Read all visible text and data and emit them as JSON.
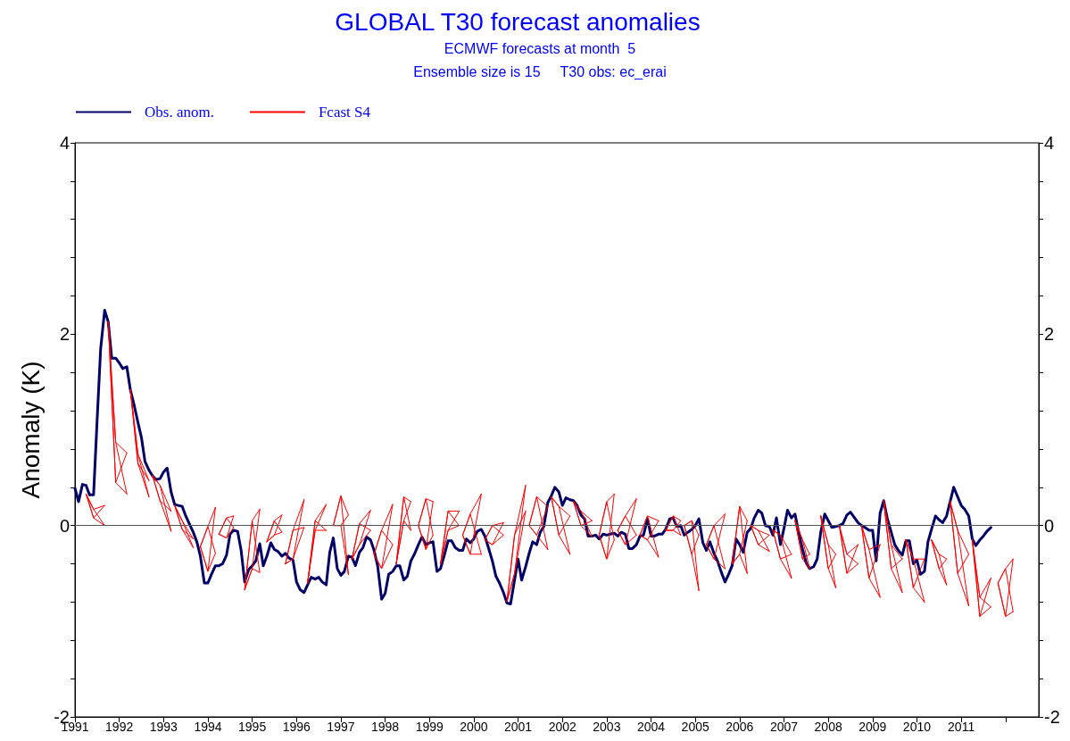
{
  "chart_data": {
    "type": "line",
    "title": "GLOBAL T30 forecast anomalies",
    "subtitle": "ECMWF forecasts at month  5\nEnsemble size is 15     T30 obs: ec_erai",
    "ylabel": "Anomaly (K)",
    "legend": "top left",
    "marker": "none",
    "xlim": [
      1991,
      2012.75
    ],
    "xticks": [
      1991,
      1992,
      1993,
      1994,
      1995,
      1996,
      1997,
      1998,
      1999,
      2000,
      2001,
      2002,
      2003,
      2004,
      2005,
      2006,
      2007,
      2008,
      2009,
      2010,
      2011,
      {
        "value": 2012,
        "label": null
      }
    ],
    "ylim": [
      -2,
      4
    ],
    "yticks": [
      -2,
      {
        "value": -1.6,
        "label": null
      },
      {
        "value": -1.2,
        "label": null
      },
      {
        "value": -0.8,
        "label": null
      },
      {
        "value": -0.4,
        "label": null
      },
      0,
      {
        "value": 0.4,
        "label": null
      },
      {
        "value": 0.8,
        "label": null
      },
      {
        "value": 1.2,
        "label": null
      },
      {
        "value": 1.6,
        "label": null
      },
      2,
      {
        "value": 2.4,
        "label": null
      },
      {
        "value": 2.8,
        "label": null
      },
      {
        "value": 3.2,
        "label": null
      },
      {
        "value": 3.6,
        "label": null
      },
      4
    ],
    "y2lim": [
      -2,
      4
    ],
    "y2ticks": [
      -2,
      {
        "value": -1.6,
        "label": null
      },
      {
        "value": -1.2,
        "label": null
      },
      {
        "value": -0.8,
        "label": null
      },
      {
        "value": -0.4,
        "label": null
      },
      0,
      {
        "value": 0.4,
        "label": null
      },
      {
        "value": 0.8,
        "label": null
      },
      {
        "value": 1.2,
        "label": null
      },
      {
        "value": 1.6,
        "label": null
      },
      2,
      {
        "value": 2.4,
        "label": null
      },
      {
        "value": 2.8,
        "label": null
      },
      {
        "value": 3.2,
        "label": null
      },
      {
        "value": 3.6,
        "label": null
      },
      4
    ],
    "ref_lines": [
      {
        "axis": "y",
        "value": 0,
        "label": null,
        "color": "#555555"
      }
    ],
    "series": [
      {
        "name": "Obs. anom.",
        "color": "#000066",
        "x": [
          1991,
          1991.08,
          1991.17,
          1991.25,
          1991.33,
          1991.42,
          1991.5,
          1991.58,
          1991.67,
          1991.75,
          1991.83,
          1991.92,
          1992,
          1992.08,
          1992.17,
          1992.25,
          1992.33,
          1992.42,
          1992.5,
          1992.58,
          1992.67,
          1992.75,
          1992.83,
          1992.92,
          1993,
          1993.08,
          1993.17,
          1993.25,
          1993.33,
          1993.42,
          1993.5,
          1993.58,
          1993.67,
          1993.75,
          1993.83,
          1993.92,
          1994,
          1994.08,
          1994.17,
          1994.25,
          1994.33,
          1994.42,
          1994.5,
          1994.58,
          1994.67,
          1994.75,
          1994.83,
          1994.92,
          1995,
          1995.08,
          1995.17,
          1995.25,
          1995.33,
          1995.42,
          1995.5,
          1995.58,
          1995.67,
          1995.75,
          1995.83,
          1995.92,
          1996,
          1996.08,
          1996.17,
          1996.25,
          1996.33,
          1996.42,
          1996.5,
          1996.58,
          1996.67,
          1996.75,
          1996.83,
          1996.92,
          1997,
          1997.08,
          1997.17,
          1997.25,
          1997.33,
          1997.42,
          1997.5,
          1997.58,
          1997.67,
          1997.75,
          1997.83,
          1997.92,
          1998,
          1998.08,
          1998.17,
          1998.25,
          1998.33,
          1998.42,
          1998.5,
          1998.58,
          1998.67,
          1998.75,
          1998.83,
          1998.92,
          1999,
          1999.08,
          1999.17,
          1999.25,
          1999.33,
          1999.42,
          1999.5,
          1999.58,
          1999.67,
          1999.75,
          1999.83,
          1999.92,
          2000,
          2000.08,
          2000.17,
          2000.25,
          2000.33,
          2000.42,
          2000.5,
          2000.58,
          2000.67,
          2000.75,
          2000.83,
          2000.92,
          2001,
          2001.08,
          2001.17,
          2001.25,
          2001.33,
          2001.42,
          2001.5,
          2001.58,
          2001.67,
          2001.75,
          2001.83,
          2001.92,
          2002,
          2002.08,
          2002.17,
          2002.25,
          2002.33,
          2002.42,
          2002.5,
          2002.58,
          2002.67,
          2002.75,
          2002.83,
          2002.92,
          2003,
          2003.08,
          2003.17,
          2003.25,
          2003.33,
          2003.42,
          2003.5,
          2003.58,
          2003.67,
          2003.75,
          2003.83,
          2003.92,
          2004,
          2004.08,
          2004.17,
          2004.25,
          2004.33,
          2004.42,
          2004.5,
          2004.58,
          2004.67,
          2004.75,
          2004.83,
          2004.92,
          2005,
          2005.08,
          2005.17,
          2005.25,
          2005.33,
          2005.42,
          2005.5,
          2005.58,
          2005.67,
          2005.75,
          2005.83,
          2005.92,
          2006,
          2006.08,
          2006.17,
          2006.25,
          2006.33,
          2006.42,
          2006.5,
          2006.58,
          2006.67,
          2006.75,
          2006.83,
          2006.92,
          2007,
          2007.08,
          2007.17,
          2007.25,
          2007.33,
          2007.42,
          2007.5,
          2007.58,
          2007.67,
          2007.75,
          2007.83,
          2007.92,
          2008,
          2008.08,
          2008.17,
          2008.25,
          2008.33,
          2008.42,
          2008.5,
          2008.58,
          2008.67,
          2008.75,
          2008.83,
          2008.92,
          2009,
          2009.08,
          2009.17,
          2009.25,
          2009.33,
          2009.42,
          2009.5,
          2009.58,
          2009.67,
          2009.75,
          2009.83,
          2009.92,
          2010,
          2010.08,
          2010.17,
          2010.25,
          2010.33,
          2010.42,
          2010.5,
          2010.58,
          2010.67,
          2010.75,
          2010.83,
          2010.92,
          2011,
          2011.08,
          2011.17,
          2011.25,
          2011.33,
          2011.42,
          2011.5,
          2011.58,
          2011.67
        ],
        "values": [
          0.39,
          0.25,
          0.43,
          0.42,
          0.32,
          0.32,
          1.1,
          1.85,
          2.25,
          2.13,
          1.75,
          1.75,
          1.7,
          1.64,
          1.66,
          1.42,
          1.27,
          1.08,
          0.92,
          0.67,
          0.58,
          0.52,
          0.48,
          0.49,
          0.56,
          0.6,
          0.35,
          0.22,
          0.21,
          0.2,
          0.1,
          0.02,
          -0.07,
          -0.17,
          -0.32,
          -0.6,
          -0.6,
          -0.51,
          -0.42,
          -0.42,
          -0.4,
          -0.31,
          -0.09,
          -0.05,
          -0.06,
          -0.26,
          -0.59,
          -0.46,
          -0.42,
          -0.37,
          -0.19,
          -0.42,
          -0.32,
          -0.18,
          -0.25,
          -0.27,
          -0.32,
          -0.29,
          -0.34,
          -0.36,
          -0.59,
          -0.67,
          -0.7,
          -0.62,
          -0.54,
          -0.56,
          -0.54,
          -0.59,
          -0.62,
          -0.28,
          -0.13,
          -0.45,
          -0.52,
          -0.48,
          -0.32,
          -0.33,
          -0.42,
          -0.28,
          -0.23,
          -0.12,
          -0.15,
          -0.26,
          -0.42,
          -0.77,
          -0.71,
          -0.51,
          -0.48,
          -0.42,
          -0.42,
          -0.57,
          -0.53,
          -0.37,
          -0.29,
          -0.2,
          -0.12,
          -0.2,
          -0.18,
          -0.17,
          -0.48,
          -0.45,
          -0.32,
          -0.16,
          -0.16,
          -0.23,
          -0.26,
          -0.26,
          -0.14,
          -0.18,
          -0.14,
          -0.06,
          -0.04,
          -0.11,
          -0.23,
          -0.37,
          -0.53,
          -0.6,
          -0.7,
          -0.81,
          -0.82,
          -0.57,
          -0.35,
          -0.57,
          -0.43,
          -0.29,
          -0.17,
          -0.2,
          -0.07,
          -0.01,
          0.24,
          0.31,
          0.4,
          0.35,
          0.21,
          0.29,
          0.27,
          0.26,
          0.21,
          0.11,
          0.07,
          -0.11,
          -0.11,
          -0.1,
          -0.14,
          -0.09,
          -0.1,
          -0.09,
          -0.08,
          -0.11,
          -0.07,
          -0.09,
          -0.24,
          -0.24,
          -0.2,
          -0.11,
          -0.1,
          0.07,
          -0.11,
          -0.11,
          -0.09,
          -0.09,
          -0.04,
          0.07,
          0.08,
          -0.01,
          0.0,
          -0.1,
          -0.07,
          -0.04,
          0.0,
          0.07,
          -0.18,
          -0.26,
          -0.17,
          -0.29,
          -0.37,
          -0.48,
          -0.59,
          -0.51,
          -0.42,
          -0.14,
          -0.2,
          -0.28,
          -0.07,
          -0.03,
          0.08,
          0.16,
          0.13,
          0.0,
          -0.01,
          -0.1,
          0.08,
          -0.2,
          -0.03,
          0.16,
          0.08,
          0.12,
          -0.07,
          -0.25,
          -0.39,
          -0.45,
          -0.43,
          -0.35,
          -0.07,
          0.12,
          0.05,
          -0.02,
          -0.01,
          0.0,
          0.02,
          0.11,
          0.14,
          0.09,
          0.03,
          0.0,
          -0.02,
          -0.05,
          -0.05,
          -0.37,
          0.13,
          0.26,
          0.08,
          -0.07,
          -0.2,
          -0.26,
          -0.31,
          -0.16,
          -0.16,
          -0.4,
          -0.36,
          -0.51,
          -0.48,
          -0.17,
          -0.04,
          0.1,
          0.06,
          0.03,
          0.1,
          0.25,
          0.4,
          0.3,
          0.21,
          0.17,
          0.1,
          -0.14,
          -0.21,
          -0.15,
          -0.11,
          -0.06,
          -0.02
        ]
      },
      {
        "name": "Fcast S4",
        "color": "#ff0000",
        "x": [
          1991.25,
          1991.42,
          1991.67,
          null,
          1991.25,
          1991.42,
          1991.67,
          null,
          1991.25,
          1991.42,
          1991.67,
          null,
          1991.25,
          1991.42,
          1991.67,
          null,
          1991.75,
          1991.92,
          1992.17,
          null,
          1991.75,
          1991.92,
          1992.17,
          null,
          1991.75,
          1991.92,
          1992.17,
          null,
          1991.75,
          1991.92,
          1992.17,
          null,
          1992.25,
          1992.42,
          1992.67,
          null,
          1992.25,
          1992.42,
          1992.67,
          null,
          1992.25,
          1992.42,
          1992.67,
          null,
          1992.25,
          1992.42,
          1992.67,
          null,
          1992.75,
          1992.92,
          1993.17,
          null,
          1992.75,
          1992.92,
          1993.17,
          null,
          1992.75,
          1992.92,
          1993.17,
          null,
          1992.75,
          1992.92,
          1993.17,
          null,
          1993.25,
          1993.42,
          1993.67,
          null,
          1993.25,
          1993.42,
          1993.67,
          null,
          1993.25,
          1993.42,
          1993.67,
          null,
          1993.25,
          1993.42,
          1993.67,
          null,
          1993.83,
          1994,
          1994.17,
          null,
          1993.83,
          1994,
          1994.17,
          null,
          1993.83,
          1994,
          1994.17,
          null,
          1993.83,
          1994,
          1994.17,
          null,
          1994.25,
          1994.42,
          1994.58,
          null,
          1994.25,
          1994.42,
          1994.58,
          null,
          1994.25,
          1994.42,
          1994.58,
          null,
          1994.25,
          1994.42,
          1994.58,
          null,
          1994.83,
          1995,
          1995.17,
          null,
          1994.83,
          1995,
          1995.17,
          null,
          1994.83,
          1995,
          1995.17,
          null,
          1994.83,
          1995,
          1995.17,
          null,
          1995.33,
          1995.5,
          1995.67,
          null,
          1995.33,
          1995.5,
          1995.67,
          null,
          1995.33,
          1995.5,
          1995.67,
          null,
          1995.33,
          1995.5,
          1995.67,
          null,
          1995.75,
          1995.92,
          1996.17,
          null,
          1995.75,
          1995.92,
          1996.17,
          null,
          1995.75,
          1995.92,
          1996.17,
          null,
          1995.75,
          1995.92,
          1996.17,
          null,
          1996.25,
          1996.42,
          1996.67,
          null,
          1996.25,
          1996.42,
          1996.67,
          null,
          1996.25,
          1996.42,
          1996.67,
          null,
          1996.25,
          1996.42,
          1996.67,
          null,
          1996.83,
          1997,
          1997.17,
          null,
          1996.83,
          1997,
          1997.17,
          null,
          1996.83,
          1997,
          1997.17,
          null,
          1996.83,
          1997,
          1997.17,
          null,
          1997.25,
          1997.42,
          1997.67,
          null,
          1997.25,
          1997.42,
          1997.67,
          null,
          1997.25,
          1997.42,
          1997.67,
          null,
          1997.25,
          1997.42,
          1997.67,
          null,
          1997.75,
          1997.92,
          1998.17,
          null,
          1997.75,
          1997.92,
          1998.17,
          null,
          1997.75,
          1997.92,
          1998.17,
          null,
          1997.75,
          1997.92,
          1998.17,
          null,
          1998.25,
          1998.42,
          1998.58,
          null,
          1998.25,
          1998.42,
          1998.58,
          null,
          1998.25,
          1998.42,
          1998.58,
          null,
          1998.25,
          1998.42,
          1998.58,
          null,
          1998.75,
          1998.92,
          1999.08,
          null,
          1998.75,
          1998.92,
          1999.08,
          null,
          1998.75,
          1998.92,
          1999.08,
          null,
          1998.75,
          1998.92,
          1999.08,
          null,
          1999.25,
          1999.42,
          1999.67,
          null,
          1999.25,
          1999.42,
          1999.67,
          null,
          1999.25,
          1999.42,
          1999.67,
          null,
          1999.25,
          1999.42,
          1999.67,
          null,
          1999.75,
          1999.92,
          2000.17,
          null,
          1999.75,
          1999.92,
          2000.17,
          null,
          1999.75,
          1999.92,
          2000.17,
          null,
          1999.75,
          1999.92,
          2000.17,
          null,
          2000.25,
          2000.42,
          2000.67,
          null,
          2000.25,
          2000.42,
          2000.67,
          null,
          2000.25,
          2000.42,
          2000.67,
          null,
          2000.25,
          2000.42,
          2000.67,
          null,
          2000.75,
          2000.92,
          2001.17,
          null,
          2000.75,
          2000.92,
          2001.17,
          null,
          2000.75,
          2000.92,
          2001.17,
          null,
          2000.75,
          2000.92,
          2001.17,
          null,
          2001.25,
          2001.42,
          2001.67,
          null,
          2001.25,
          2001.42,
          2001.67,
          null,
          2001.25,
          2001.42,
          2001.67,
          null,
          2001.25,
          2001.42,
          2001.67,
          null,
          2001.75,
          2001.92,
          2002.17,
          null,
          2001.75,
          2001.92,
          2002.17,
          null,
          2001.75,
          2001.92,
          2002.17,
          null,
          2001.75,
          2001.92,
          2002.17,
          null,
          2002.25,
          2002.42,
          2002.67,
          null,
          2002.25,
          2002.42,
          2002.67,
          null,
          2002.25,
          2002.42,
          2002.67,
          null,
          2002.25,
          2002.42,
          2002.67,
          null,
          2002.83,
          2003,
          2003.17,
          null,
          2002.83,
          2003,
          2003.17,
          null,
          2002.83,
          2003,
          2003.17,
          null,
          2002.83,
          2003,
          2003.17,
          null,
          2003.25,
          2003.42,
          2003.67,
          null,
          2003.25,
          2003.42,
          2003.67,
          null,
          2003.25,
          2003.42,
          2003.67,
          null,
          2003.25,
          2003.42,
          2003.67,
          null,
          2003.75,
          2003.92,
          2004.17,
          null,
          2003.75,
          2003.92,
          2004.17,
          null,
          2003.75,
          2003.92,
          2004.17,
          null,
          2003.75,
          2003.92,
          2004.17,
          null,
          2004.33,
          2004.5,
          2004.67,
          null,
          2004.33,
          2004.5,
          2004.67,
          null,
          2004.33,
          2004.5,
          2004.67,
          null,
          2004.33,
          2004.5,
          2004.67,
          null,
          2004.75,
          2004.92,
          2005.08,
          null,
          2004.75,
          2004.92,
          2005.08,
          null,
          2004.75,
          2004.92,
          2005.08,
          null,
          2004.75,
          2004.92,
          2005.08,
          null,
          2005.25,
          2005.42,
          2005.67,
          null,
          2005.25,
          2005.42,
          2005.67,
          null,
          2005.25,
          2005.42,
          2005.67,
          null,
          2005.25,
          2005.42,
          2005.67,
          null,
          2005.83,
          2006,
          2006.17,
          null,
          2005.83,
          2006,
          2006.17,
          null,
          2005.83,
          2006,
          2006.17,
          null,
          2005.83,
          2006,
          2006.17,
          null,
          2006.25,
          2006.42,
          2006.67,
          null,
          2006.25,
          2006.42,
          2006.67,
          null,
          2006.25,
          2006.42,
          2006.67,
          null,
          2006.25,
          2006.42,
          2006.67,
          null,
          2006.75,
          2006.92,
          2007.17,
          null,
          2006.75,
          2006.92,
          2007.17,
          null,
          2006.75,
          2006.92,
          2007.17,
          null,
          2006.75,
          2006.92,
          2007.17,
          null,
          2007.25,
          2007.42,
          2007.58,
          null,
          2007.25,
          2007.42,
          2007.58,
          null,
          2007.25,
          2007.42,
          2007.58,
          null,
          2007.25,
          2007.42,
          2007.58,
          null,
          2007.83,
          2008,
          2008.17,
          null,
          2007.83,
          2008,
          2008.17,
          null,
          2007.83,
          2008,
          2008.17,
          null,
          2007.83,
          2008,
          2008.17,
          null,
          2008.25,
          2008.42,
          2008.67,
          null,
          2008.25,
          2008.42,
          2008.67,
          null,
          2008.25,
          2008.42,
          2008.67,
          null,
          2008.25,
          2008.42,
          2008.67,
          null,
          2008.75,
          2008.92,
          2009.17,
          null,
          2008.75,
          2008.92,
          2009.17,
          null,
          2008.75,
          2008.92,
          2009.17,
          null,
          2008.75,
          2008.92,
          2009.17,
          null,
          2009.25,
          2009.42,
          2009.67,
          null,
          2009.25,
          2009.42,
          2009.67,
          null,
          2009.25,
          2009.42,
          2009.67,
          null,
          2009.25,
          2009.42,
          2009.67,
          null,
          2009.75,
          2009.92,
          2010.17,
          null,
          2009.75,
          2009.92,
          2010.17,
          null,
          2009.75,
          2009.92,
          2010.17,
          null,
          2009.75,
          2009.92,
          2010.17,
          null,
          2010.33,
          2010.5,
          2010.67,
          null,
          2010.33,
          2010.5,
          2010.67,
          null,
          2010.33,
          2010.5,
          2010.67,
          null,
          2010.33,
          2010.5,
          2010.67,
          null,
          2010.75,
          2010.92,
          2011.17,
          null,
          2010.75,
          2010.92,
          2011.17,
          null,
          2010.75,
          2010.92,
          2011.17,
          null,
          2010.75,
          2010.92,
          2011.17,
          null,
          2011.25,
          2011.42,
          2011.67,
          null,
          2011.25,
          2011.42,
          2011.67,
          null,
          2011.25,
          2011.42,
          2011.67,
          null,
          2011.25,
          2011.42,
          2011.67,
          null,
          2011.83,
          2012,
          2012.17,
          null,
          2011.83,
          2012,
          2012.17,
          null,
          2011.83,
          2012,
          2012.17,
          null,
          2011.83,
          2012,
          2012.17
        ],
        "values": [
          0.33,
          0.17,
          0.21,
          null,
          0.33,
          0.08,
          0,
          null,
          0.33,
          0.08,
          0.21,
          null,
          0.33,
          0.17,
          0,
          null,
          2.13,
          0.87,
          0.76,
          null,
          2.13,
          0.45,
          0.33,
          null,
          2.13,
          0.45,
          0.76,
          null,
          2.13,
          0.87,
          0.33,
          null,
          1.42,
          0.75,
          0.47,
          null,
          1.42,
          0.65,
          0.3,
          null,
          1.42,
          0.65,
          0.47,
          null,
          1.42,
          0.75,
          0.3,
          null,
          0.52,
          0.42,
          0.15,
          null,
          0.52,
          0.26,
          -0.06,
          null,
          0.52,
          0.26,
          0.15,
          null,
          0.52,
          0.42,
          -0.06,
          null,
          0.21,
          0.05,
          -0.14,
          null,
          0.21,
          -0.04,
          -0.23,
          null,
          0.21,
          -0.04,
          -0.14,
          null,
          0.21,
          0.05,
          -0.23,
          null,
          -0.22,
          -0.01,
          0.19,
          null,
          -0.22,
          -0.48,
          -0.29,
          null,
          -0.22,
          -0.48,
          0.19,
          null,
          -0.22,
          -0.01,
          -0.29,
          null,
          -0.09,
          0.08,
          0.1,
          null,
          -0.09,
          -0.13,
          -0.02,
          null,
          -0.09,
          -0.13,
          0.1,
          null,
          -0.09,
          0.08,
          -0.02,
          null,
          -0.67,
          0.05,
          0.17,
          null,
          -0.67,
          -0.45,
          -0.49,
          null,
          -0.67,
          -0.45,
          0.17,
          null,
          -0.67,
          0.05,
          -0.49,
          null,
          -0.17,
          0.05,
          0.11,
          null,
          -0.17,
          -0.1,
          -0.07,
          null,
          -0.17,
          -0.1,
          0.11,
          null,
          -0.17,
          0.05,
          -0.07,
          null,
          -0.4,
          -0.05,
          0.27,
          null,
          -0.4,
          -0.35,
          -0.02,
          null,
          -0.4,
          -0.35,
          0.27,
          null,
          -0.4,
          -0.05,
          -0.02,
          null,
          -0.6,
          0.05,
          0.22,
          null,
          -0.6,
          -0.05,
          -0.05,
          null,
          -0.6,
          -0.05,
          0.22,
          null,
          -0.6,
          0.05,
          -0.05,
          null,
          0,
          0.31,
          0.11,
          null,
          0,
          0,
          -0.51,
          null,
          0,
          0,
          0.11,
          null,
          0,
          0.31,
          -0.51,
          null,
          -0.35,
          0.02,
          0.16,
          null,
          -0.35,
          -0.2,
          -0.05,
          null,
          -0.35,
          -0.2,
          0.16,
          null,
          -0.35,
          0.02,
          -0.05,
          null,
          -0.3,
          -0.05,
          0.22,
          null,
          -0.3,
          -0.45,
          -0.2,
          null,
          -0.3,
          -0.45,
          0.22,
          null,
          -0.3,
          -0.05,
          -0.2,
          null,
          -0.4,
          0.3,
          0.25,
          null,
          -0.4,
          0.05,
          -0.05,
          null,
          -0.4,
          0.05,
          0.25,
          null,
          -0.4,
          0.3,
          -0.05,
          null,
          0,
          0.28,
          0.25,
          null,
          0,
          -0.25,
          -0.1,
          null,
          0,
          -0.25,
          0.25,
          null,
          0,
          0.28,
          -0.1,
          null,
          -0.4,
          0.15,
          0.15,
          null,
          -0.4,
          -0.05,
          0,
          null,
          -0.4,
          -0.05,
          0.15,
          null,
          -0.4,
          0.15,
          0,
          null,
          -0.1,
          0.12,
          0.33,
          null,
          -0.1,
          -0.3,
          -0.3,
          null,
          -0.1,
          -0.3,
          0.33,
          null,
          -0.1,
          0.12,
          -0.3,
          null,
          -0.15,
          0,
          0.03,
          null,
          -0.15,
          -0.2,
          -0.1,
          null,
          -0.15,
          -0.2,
          0.03,
          null,
          -0.15,
          0,
          -0.1,
          null,
          -0.79,
          -0.1,
          0.42,
          null,
          -0.79,
          -0.5,
          0.15,
          null,
          -0.79,
          -0.5,
          0.42,
          null,
          -0.79,
          -0.1,
          0.15,
          null,
          0,
          0.3,
          0.2,
          null,
          0,
          -0.1,
          -0.25,
          null,
          0,
          -0.1,
          0.2,
          null,
          0,
          0.3,
          -0.25,
          null,
          0.3,
          0.2,
          0.1,
          null,
          0.3,
          -0.1,
          -0.3,
          null,
          0.3,
          -0.1,
          0.1,
          null,
          0.3,
          0.2,
          -0.3,
          null,
          0.25,
          0.15,
          0.05,
          null,
          0.25,
          0,
          -0.12,
          null,
          0.25,
          0,
          0.05,
          null,
          0.25,
          0.15,
          -0.12,
          null,
          -0.1,
          0.25,
          0.33,
          null,
          -0.1,
          -0.35,
          -0.15,
          null,
          -0.1,
          -0.35,
          0.33,
          null,
          -0.1,
          0.25,
          -0.15,
          null,
          -0.05,
          0.1,
          0.28,
          null,
          -0.05,
          -0.2,
          -0.1,
          null,
          -0.05,
          -0.2,
          0.28,
          null,
          -0.05,
          0.1,
          -0.1,
          null,
          -0.1,
          0.1,
          0.05,
          null,
          -0.1,
          -0.15,
          -0.33,
          null,
          -0.1,
          -0.15,
          0.05,
          null,
          -0.1,
          0.1,
          -0.33,
          null,
          -0.05,
          0.1,
          0.05,
          null,
          -0.05,
          -0.05,
          -0.1,
          null,
          -0.05,
          -0.05,
          0.05,
          null,
          -0.05,
          0.1,
          -0.1,
          null,
          0,
          0.05,
          -0.1,
          null,
          0,
          -0.3,
          -0.68,
          null,
          0,
          -0.3,
          -0.1,
          null,
          0,
          0.05,
          -0.68,
          null,
          -0.2,
          0,
          0.12,
          null,
          -0.2,
          -0.35,
          -0.45,
          null,
          -0.2,
          -0.35,
          0.12,
          null,
          -0.2,
          0,
          -0.45,
          null,
          -0.4,
          0.2,
          0.05,
          null,
          -0.4,
          -0.3,
          -0.5,
          null,
          -0.4,
          -0.3,
          0.05,
          null,
          -0.4,
          0.2,
          -0.5,
          null,
          0,
          -0.05,
          -0.1,
          null,
          0,
          -0.2,
          -0.27,
          null,
          0,
          -0.2,
          -0.1,
          null,
          0,
          -0.05,
          -0.27,
          null,
          -0.05,
          -0.1,
          -0.3,
          null,
          -0.05,
          -0.35,
          -0.55,
          null,
          -0.05,
          -0.35,
          -0.3,
          null,
          -0.05,
          -0.1,
          -0.55,
          null,
          0.05,
          -0.15,
          -0.3,
          null,
          0.05,
          -0.35,
          -0.45,
          null,
          0.05,
          -0.35,
          -0.3,
          null,
          0.05,
          -0.15,
          -0.45,
          null,
          0.1,
          -0.2,
          -0.3,
          null,
          0.1,
          -0.45,
          -0.65,
          null,
          0.1,
          -0.45,
          -0.3,
          null,
          0.1,
          -0.2,
          -0.65,
          null,
          0,
          -0.3,
          -0.2,
          null,
          0,
          -0.5,
          -0.4,
          null,
          0,
          -0.5,
          -0.2,
          null,
          0,
          -0.3,
          -0.4,
          null,
          0,
          -0.25,
          -0.2,
          null,
          0,
          -0.55,
          -0.75,
          null,
          0,
          -0.55,
          -0.2,
          null,
          0,
          -0.25,
          -0.75,
          null,
          0.26,
          -0.2,
          -0.35,
          null,
          0.26,
          -0.45,
          -0.7,
          null,
          0.26,
          -0.45,
          -0.35,
          null,
          0.26,
          -0.2,
          -0.7,
          null,
          -0.15,
          -0.35,
          -0.35,
          null,
          -0.15,
          -0.65,
          -0.8,
          null,
          -0.15,
          -0.65,
          -0.35,
          null,
          -0.15,
          -0.35,
          -0.8,
          null,
          -0.15,
          -0.3,
          -0.35,
          null,
          -0.15,
          -0.45,
          -0.62,
          null,
          -0.15,
          -0.45,
          -0.35,
          null,
          -0.15,
          -0.3,
          -0.62,
          null,
          0.25,
          -0.05,
          -0.3,
          null,
          0.25,
          -0.5,
          -0.84,
          null,
          0.25,
          -0.5,
          -0.3,
          null,
          0.25,
          -0.05,
          -0.84,
          null,
          -0.15,
          -0.75,
          -0.55,
          null,
          -0.15,
          -0.95,
          -0.85,
          null,
          -0.15,
          -0.95,
          -0.55,
          null,
          -0.15,
          -0.75,
          -0.85,
          null,
          -0.6,
          -0.45,
          -0.35,
          null,
          -0.6,
          -0.95,
          -0.9,
          null,
          -0.6,
          -0.95,
          -0.35,
          null,
          -0.6,
          -0.45,
          -0.9
        ]
      }
    ]
  }
}
